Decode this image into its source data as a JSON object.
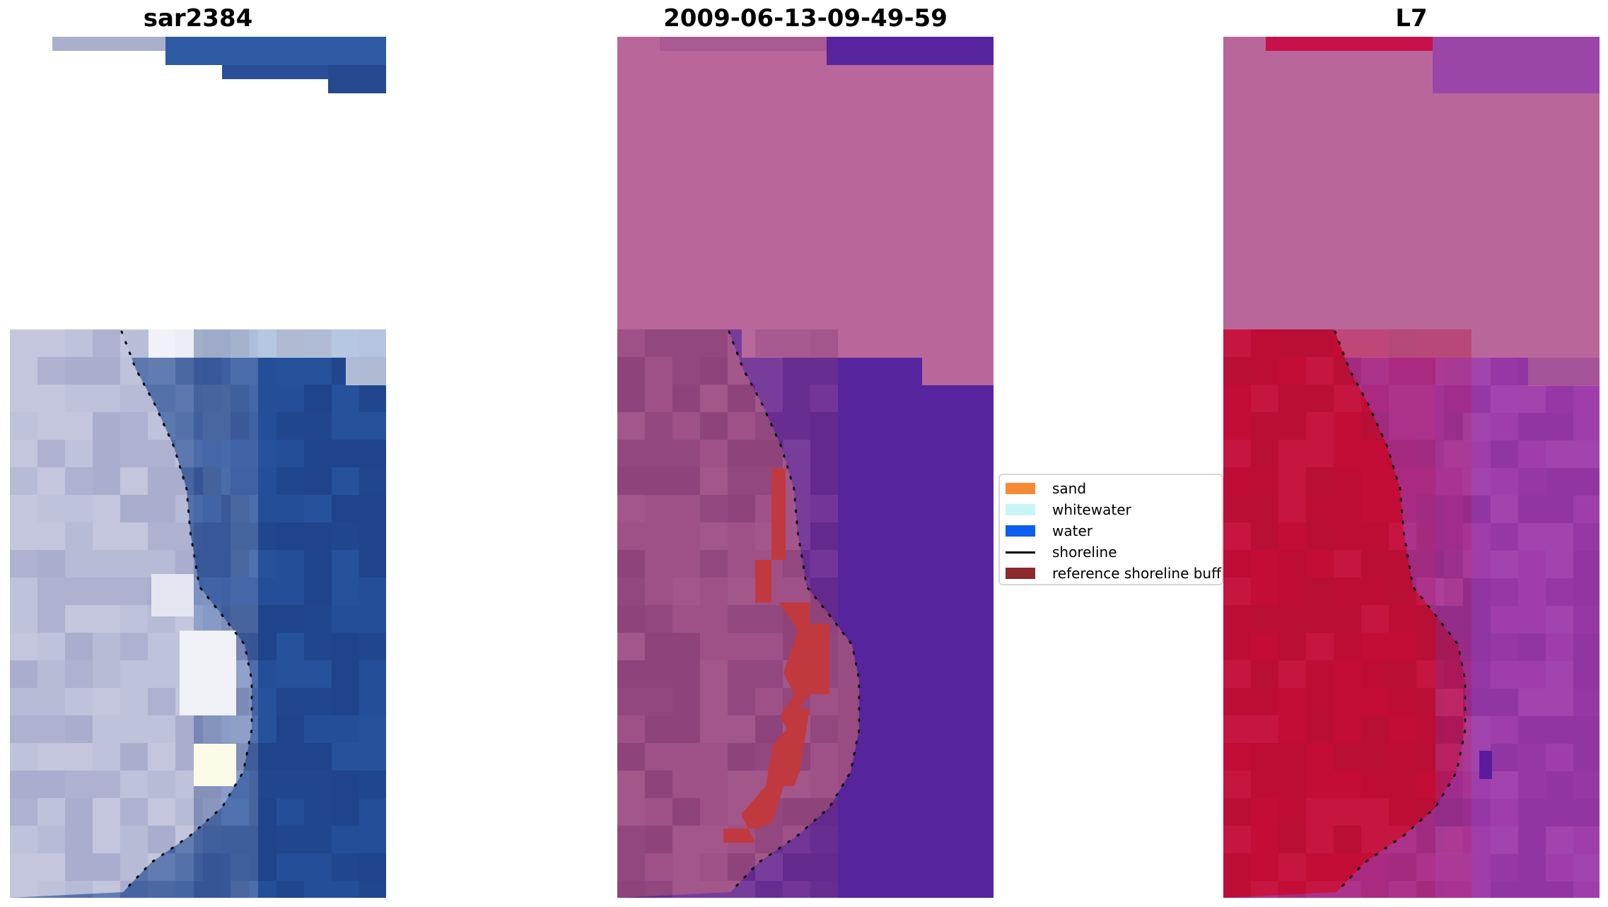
{
  "figure": {
    "panels": [
      {
        "title": "sar2384",
        "kind": "rgb"
      },
      {
        "title": "2009-06-13-09-49-59",
        "kind": "classified"
      },
      {
        "title": "L7",
        "kind": "index"
      }
    ]
  },
  "legend": {
    "items": [
      {
        "label": "sand",
        "color": "#f78a35",
        "type": "patch"
      },
      {
        "label": "whitewater",
        "color": "#c8f6f6",
        "type": "patch"
      },
      {
        "label": "water",
        "color": "#0a5ef0",
        "type": "patch"
      },
      {
        "label": "shoreline",
        "color": "#000000",
        "type": "line"
      },
      {
        "label": "reference shoreline buff",
        "color": "#8c2a2e",
        "type": "patch"
      }
    ]
  },
  "colors": {
    "sand_rgb": "#b8bcd6",
    "ocean_rgb": "#234a93",
    "foam_rgb": "#f0f2f8",
    "land_overlay": "#b9679a",
    "water_overlay": "#56249c",
    "sand_overlay": "#984c82",
    "buffer_overlay": "#c0393f",
    "index_land": "#c00d35",
    "index_water": "#9a3aa8",
    "index_pink": "#b9679a"
  }
}
